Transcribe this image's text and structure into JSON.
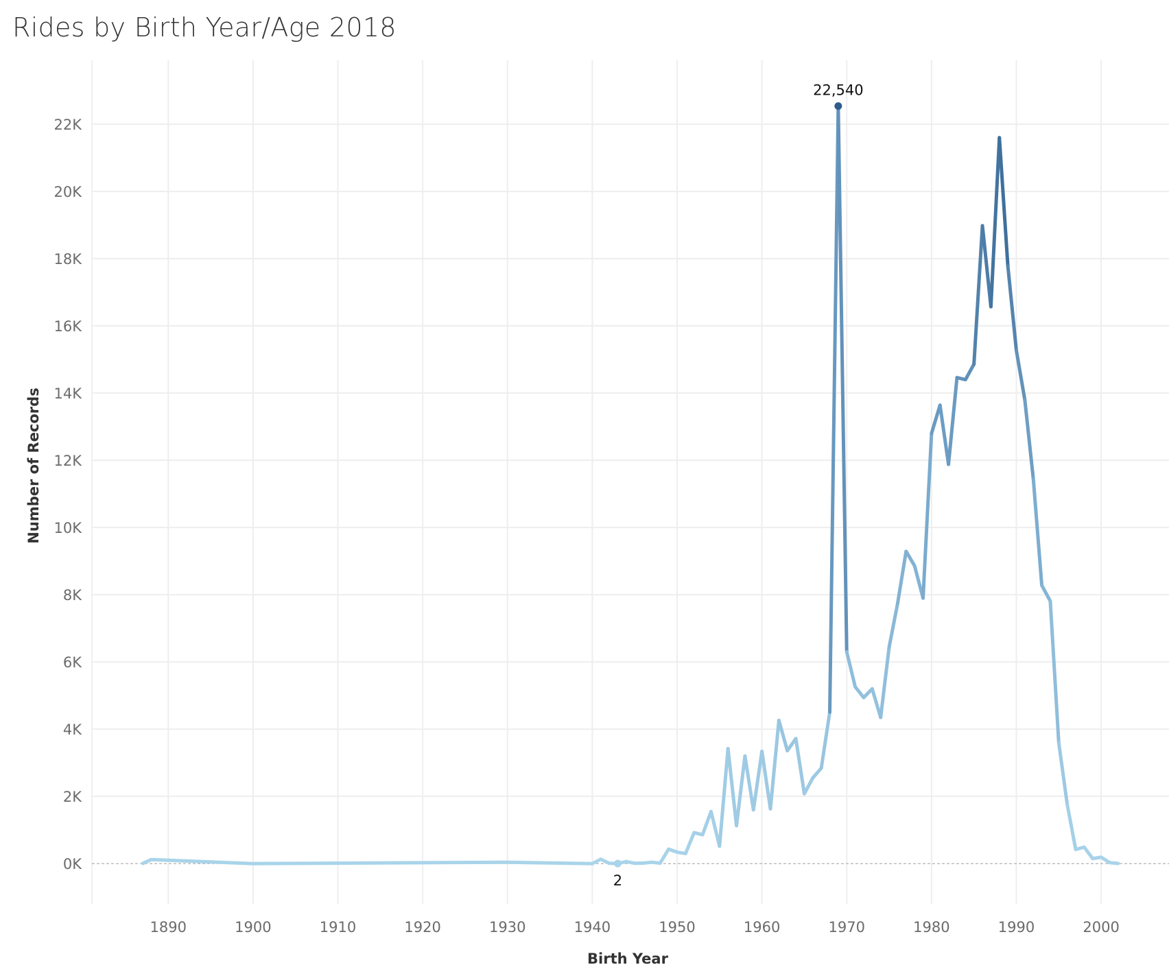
{
  "chart_data": {
    "type": "line",
    "title": "Rides by Birth Year/Age 2018",
    "xlabel": "Birth Year",
    "ylabel": "Number of Records",
    "xlim": [
      1881,
      2008
    ],
    "ylim": [
      -1200,
      23900
    ],
    "grid": true,
    "x_ticks": [
      1890,
      1900,
      1910,
      1920,
      1930,
      1940,
      1950,
      1960,
      1970,
      1980,
      1990,
      2000
    ],
    "x_tick_labels": [
      "1890",
      "1900",
      "1910",
      "1920",
      "1930",
      "1940",
      "1950",
      "1960",
      "1970",
      "1980",
      "1990",
      "2000"
    ],
    "y_ticks": [
      0,
      2000,
      4000,
      6000,
      8000,
      10000,
      12000,
      14000,
      16000,
      18000,
      20000,
      22000
    ],
    "y_tick_labels": [
      "0K",
      "2K",
      "4K",
      "6K",
      "8K",
      "10K",
      "12K",
      "14K",
      "16K",
      "18K",
      "20K",
      "22K"
    ],
    "color_scale": {
      "low": "#a9d4ea",
      "mid": "#77a7cc",
      "high": "#2e5d8c"
    },
    "reference_line_color": "#aaaaaa",
    "series": [
      {
        "x": [
          1887,
          1888,
          1900,
          1930,
          1940,
          1941,
          1942,
          1943,
          1944,
          1945,
          1946,
          1947,
          1948,
          1949,
          1950,
          1951,
          1952,
          1953,
          1954,
          1955,
          1956,
          1957,
          1958,
          1959,
          1960,
          1961,
          1962,
          1963,
          1964,
          1965,
          1966,
          1967,
          1968,
          1969,
          1970,
          1971,
          1972,
          1973,
          1974,
          1975,
          1976,
          1977,
          1978,
          1979,
          1980,
          1981,
          1982,
          1983,
          1984,
          1985,
          1986,
          1987,
          1988,
          1989,
          1990,
          1991,
          1992,
          1993,
          1994,
          1995,
          1996,
          1997,
          1998,
          1999,
          2000,
          2001,
          2002
        ],
        "y": [
          5,
          120,
          0,
          40,
          0,
          130,
          10,
          2,
          60,
          10,
          15,
          40,
          15,
          430,
          340,
          300,
          920,
          860,
          1550,
          520,
          3420,
          1130,
          3200,
          1600,
          3340,
          1630,
          4260,
          3360,
          3720,
          2080,
          2550,
          2840,
          4510,
          22540,
          6300,
          5260,
          4940,
          5200,
          4350,
          6440,
          7740,
          9290,
          8860,
          7900,
          12800,
          13640,
          11880,
          14460,
          14400,
          14860,
          18980,
          16570,
          21600,
          17780,
          15270,
          13800,
          11450,
          8280,
          7810,
          3600,
          1760,
          420,
          490,
          150,
          190,
          30,
          5
        ]
      }
    ],
    "annotations": [
      {
        "x": 1969,
        "y": 22540,
        "label": "22,540",
        "position": "above"
      },
      {
        "x": 1943,
        "y": 2,
        "label": "2",
        "position": "below"
      }
    ]
  }
}
